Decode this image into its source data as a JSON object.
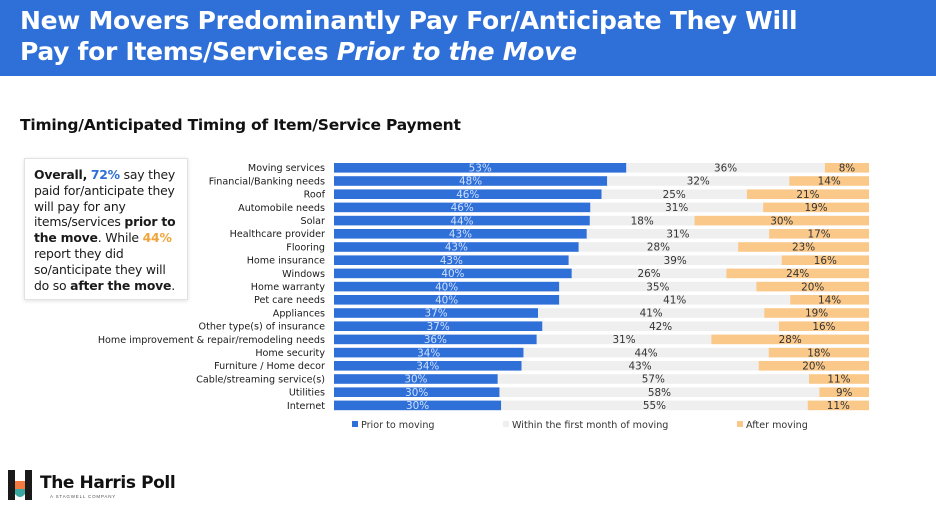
{
  "header": {
    "title_line1": "New Movers Predominantly Pay For/Anticipate They Will",
    "title_line2_plain": "Pay for Items/Services ",
    "title_line2_italic": "Prior to the Move"
  },
  "subtitle": "Timing/Anticipated Timing of Item/Service Payment",
  "callout": {
    "overall": "Overall,",
    "pct_prior": "72%",
    "text_a": "say they paid for/anticipate they will pay for any items/services",
    "bold_prior": "prior to the move",
    "text_b": ". While",
    "pct_after": "44%",
    "text_c": "report they did so/anticipate they will do so",
    "bold_after": "after the move",
    "text_d": "."
  },
  "colors": {
    "banner": "#2e6fd8",
    "prior": "#2e6fd8",
    "within": "#efefef",
    "after": "#fac98a"
  },
  "chart_data": {
    "type": "bar",
    "orientation": "horizontal",
    "stacked": true,
    "title": "Timing/Anticipated Timing of Item/Service Payment",
    "unit": "%",
    "legend_position": "bottom",
    "categories": [
      "Moving services",
      "Financial/Banking needs",
      "Roof",
      "Automobile needs",
      "Solar",
      "Healthcare provider",
      "Flooring",
      "Home insurance",
      "Windows",
      "Home warranty",
      "Pet care needs",
      "Appliances",
      "Other type(s) of insurance",
      "Home improvement & repair/remodeling needs",
      "Home security",
      "Furniture / Home decor",
      "Cable/streaming service(s)",
      "Utilities",
      "Internet"
    ],
    "series": [
      {
        "name": "Prior to moving",
        "values": [
          53,
          48,
          46,
          46,
          44,
          43,
          43,
          43,
          40,
          40,
          40,
          37,
          37,
          36,
          34,
          34,
          30,
          30,
          30
        ]
      },
      {
        "name": "Within the first month of moving",
        "values": [
          36,
          32,
          25,
          31,
          18,
          31,
          28,
          39,
          26,
          35,
          41,
          41,
          42,
          31,
          44,
          43,
          57,
          58,
          55
        ]
      },
      {
        "name": "After moving",
        "values": [
          8,
          14,
          21,
          19,
          30,
          17,
          23,
          16,
          24,
          20,
          14,
          19,
          16,
          28,
          18,
          20,
          11,
          9,
          11
        ]
      }
    ]
  },
  "logo": {
    "name": "The Harris Poll",
    "tagline": "A STAGWELL COMPANY"
  }
}
